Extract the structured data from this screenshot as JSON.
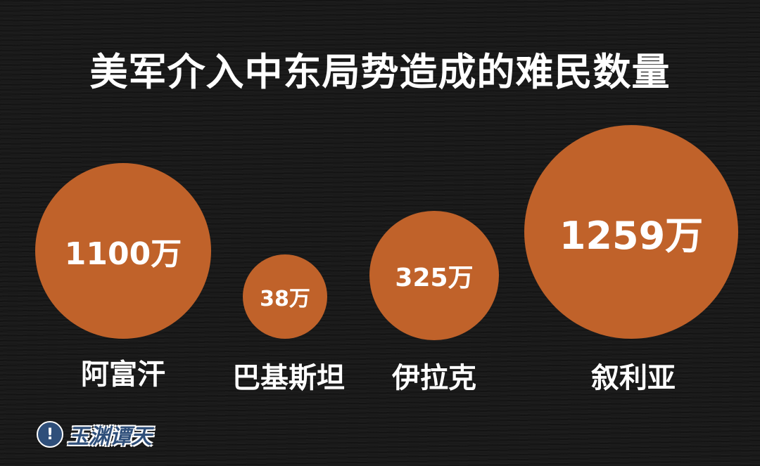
{
  "chart_data": {
    "type": "bubble",
    "title": "美军介入中东局势造成的难民数量",
    "categories": [
      "阿富汗",
      "巴基斯坦",
      "伊拉克",
      "叙利亚"
    ],
    "values": [
      1100,
      38,
      325,
      1259
    ],
    "value_labels": [
      "1100万",
      "38万",
      "325万",
      "1259万"
    ],
    "unit": "万",
    "bubble_color": "#c0622a",
    "grid": false
  },
  "logo": {
    "text": "玉渊谭天",
    "mark": "!"
  }
}
